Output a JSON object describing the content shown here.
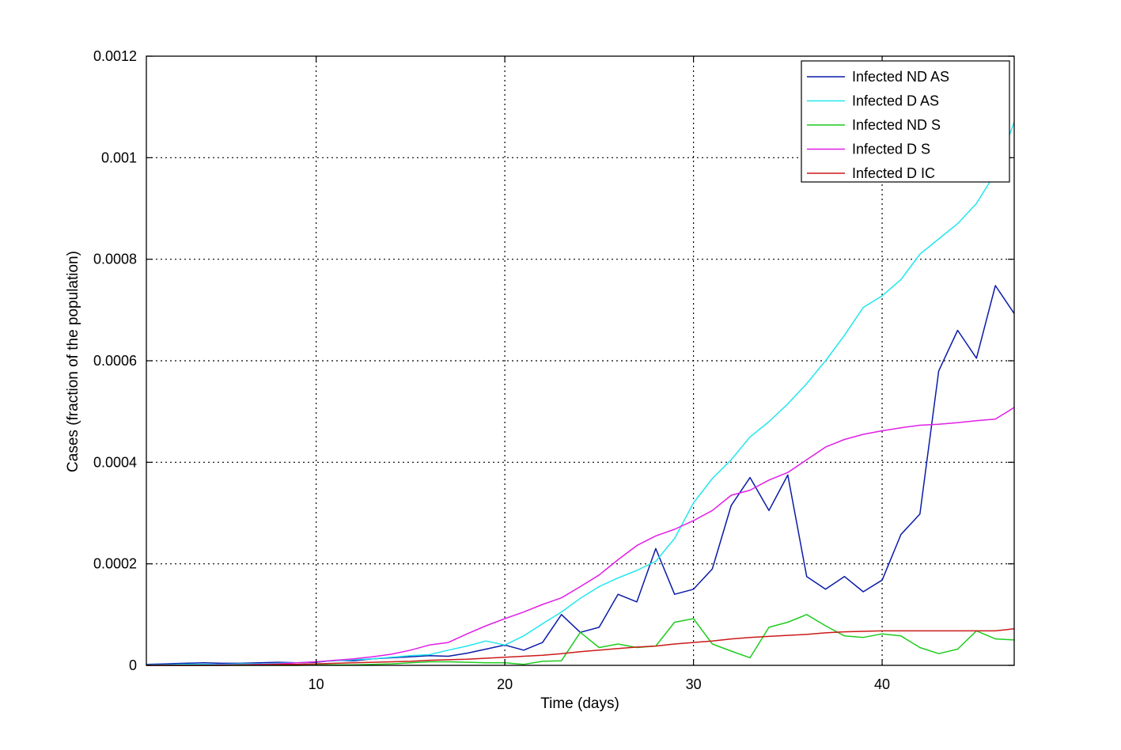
{
  "chart_data": {
    "type": "line",
    "title": "",
    "xlabel": "Time (days)",
    "ylabel": "Cases (fraction of the population)",
    "xlim": [
      1,
      47
    ],
    "ylim": [
      0,
      0.0012
    ],
    "xticks": [
      10,
      20,
      30,
      40
    ],
    "xtick_labels": [
      "10",
      "20",
      "30",
      "40"
    ],
    "yticks": [
      0,
      0.0002,
      0.0004,
      0.0006,
      0.0008,
      0.001,
      0.0012
    ],
    "ytick_labels": [
      "0",
      "0.0002",
      "0.0004",
      "0.0006",
      "0.0008",
      "0.001",
      "0.0012"
    ],
    "grid": true,
    "legend_position": "top-right",
    "x": [
      1,
      2,
      3,
      4,
      5,
      6,
      7,
      8,
      9,
      10,
      11,
      12,
      13,
      14,
      15,
      16,
      17,
      18,
      19,
      20,
      21,
      22,
      23,
      24,
      25,
      26,
      27,
      28,
      29,
      30,
      31,
      32,
      33,
      34,
      35,
      36,
      37,
      38,
      39,
      40,
      41,
      42,
      43,
      44,
      45,
      46,
      47
    ],
    "series": [
      {
        "name": "Infected ND AS",
        "color": "#0a1ba8",
        "values": [
          2e-06,
          3e-06,
          4e-06,
          5e-06,
          4e-06,
          4e-06,
          5e-06,
          6e-06,
          5e-06,
          6e-06,
          1e-05,
          9e-06,
          1.3e-05,
          1.5e-05,
          1.7e-05,
          1.9e-05,
          1.8e-05,
          2.4e-05,
          3.2e-05,
          4e-05,
          3e-05,
          4.5e-05,
          0.0001,
          6.5e-05,
          7.5e-05,
          0.00014,
          0.000125,
          0.00023,
          0.00014,
          0.00015,
          0.00019,
          0.000315,
          0.00037,
          0.000305,
          0.000375,
          0.000175,
          0.00015,
          0.000175,
          0.000145,
          0.000168,
          0.000258,
          0.000298,
          0.00058,
          0.00066,
          0.000605,
          0.000748,
          0.000693
        ]
      },
      {
        "name": "Infected D AS",
        "color": "#22e6ee",
        "values": [
          1e-06,
          1e-06,
          2e-06,
          2e-06,
          2e-06,
          3e-06,
          3e-06,
          4e-06,
          5e-06,
          7e-06,
          9e-06,
          1.1e-05,
          1.3e-05,
          1.6e-05,
          1.9e-05,
          2.1e-05,
          3e-05,
          3.8e-05,
          4.8e-05,
          4e-05,
          5.8e-05,
          8.2e-05,
          0.000105,
          0.000132,
          0.000155,
          0.000172,
          0.000187,
          0.000205,
          0.00025,
          0.00032,
          0.000368,
          0.000405,
          0.00045,
          0.00048,
          0.000515,
          0.000555,
          0.0006,
          0.00065,
          0.000705,
          0.000728,
          0.00076,
          0.00081,
          0.00084,
          0.00087,
          0.00091,
          0.00097,
          0.00107
        ]
      },
      {
        "name": "Infected ND S",
        "color": "#1fcc1f",
        "values": [
          0,
          0,
          0,
          0,
          0,
          0,
          0,
          0,
          0,
          1e-06,
          1e-06,
          1e-06,
          2e-06,
          3e-06,
          5e-06,
          7e-06,
          7e-06,
          6e-06,
          5e-06,
          5e-06,
          2e-06,
          8e-06,
          9e-06,
          6.5e-05,
          3.5e-05,
          4.2e-05,
          3.5e-05,
          3.8e-05,
          8.5e-05,
          9.2e-05,
          4.2e-05,
          2.8e-05,
          1.5e-05,
          7.5e-05,
          8.5e-05,
          0.0001,
          7.8e-05,
          5.8e-05,
          5.5e-05,
          6.2e-05,
          5.8e-05,
          3.5e-05,
          2.3e-05,
          3.2e-05,
          6.8e-05,
          5.2e-05,
          5e-05
        ]
      },
      {
        "name": "Infected D S",
        "color": "#e11ee6",
        "values": [
          0,
          0,
          0,
          0,
          1e-06,
          1e-06,
          2e-06,
          3e-06,
          5e-06,
          7e-06,
          1e-05,
          1.3e-05,
          1.7e-05,
          2.2e-05,
          3e-05,
          4e-05,
          4.5e-05,
          6.2e-05,
          7.8e-05,
          9.2e-05,
          0.000105,
          0.00012,
          0.000133,
          0.000155,
          0.000178,
          0.000208,
          0.000236,
          0.000255,
          0.000268,
          0.000285,
          0.000305,
          0.000335,
          0.000345,
          0.000365,
          0.00038,
          0.000405,
          0.00043,
          0.000445,
          0.000455,
          0.000462,
          0.000468,
          0.000473,
          0.000475,
          0.000478,
          0.000482,
          0.000485,
          0.000508
        ]
      },
      {
        "name": "Infected D IC",
        "color": "#cc1a1a",
        "values": [
          0,
          0,
          0,
          0,
          0,
          1e-06,
          1e-06,
          2e-06,
          2e-06,
          3e-06,
          4e-06,
          5e-06,
          6e-06,
          7e-06,
          8e-06,
          1e-05,
          1.1e-05,
          1.2e-05,
          1.4e-05,
          1.6e-05,
          1.8e-05,
          2e-05,
          2.3e-05,
          2.7e-05,
          3e-05,
          3.3e-05,
          3.6e-05,
          3.8e-05,
          4.2e-05,
          4.5e-05,
          4.8e-05,
          5.2e-05,
          5.5e-05,
          5.7e-05,
          5.9e-05,
          6.1e-05,
          6.4e-05,
          6.6e-05,
          6.7e-05,
          6.8e-05,
          6.8e-05,
          6.8e-05,
          6.8e-05,
          6.8e-05,
          6.8e-05,
          6.8e-05,
          7.2e-05
        ]
      }
    ]
  }
}
